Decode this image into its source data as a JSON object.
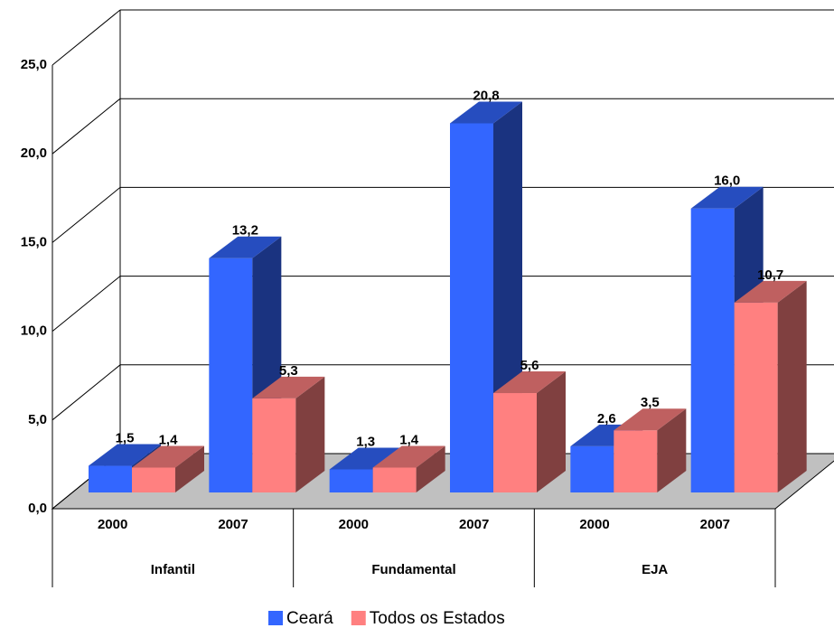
{
  "chart_data": {
    "type": "bar3d",
    "categories": [
      "2000",
      "2007",
      "2000",
      "2007",
      "2000",
      "2007"
    ],
    "groups": [
      "Infantil",
      "Fundamental",
      "EJA"
    ],
    "series": [
      {
        "name": "Ceará",
        "color": "#3366ff",
        "values": [
          1.5,
          13.2,
          1.3,
          20.8,
          2.6,
          16.0
        ],
        "value_labels": [
          "1,5",
          "13,2",
          "1,3",
          "20,8",
          "2,6",
          "16,0"
        ]
      },
      {
        "name": "Todos os Estados",
        "color": "#ff8080",
        "values": [
          1.4,
          5.3,
          1.4,
          5.6,
          3.5,
          10.7
        ],
        "value_labels": [
          "1,4",
          "5,3",
          "1,4",
          "5,6",
          "3,5",
          "10,7"
        ]
      }
    ],
    "ylim": [
      0,
      25
    ],
    "yticks": [
      {
        "value": 0,
        "label": "0,0"
      },
      {
        "value": 5,
        "label": "5,0"
      },
      {
        "value": 10,
        "label": "10,0"
      },
      {
        "value": 15,
        "label": "15,0"
      },
      {
        "value": 20,
        "label": "20,0"
      },
      {
        "value": 25,
        "label": "25,0"
      }
    ],
    "grid": true
  }
}
